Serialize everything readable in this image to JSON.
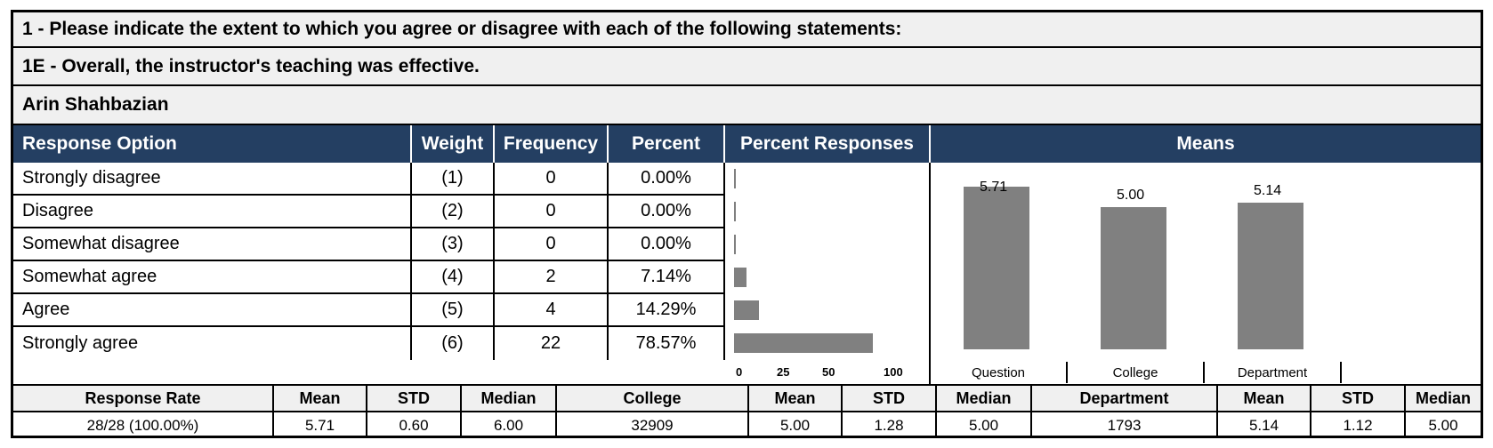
{
  "header": {
    "question_group": "1 - Please indicate the extent to which you agree or disagree with each of the following statements:",
    "question": "1E - Overall, the instructor's teaching was effective.",
    "instructor": "Arin Shahbazian"
  },
  "table": {
    "columns": {
      "option": "Response Option",
      "weight": "Weight",
      "frequency": "Frequency",
      "percent": "Percent",
      "percent_responses": "Percent Responses",
      "means": "Means"
    },
    "rows": [
      {
        "option": "Strongly disagree",
        "weight": "(1)",
        "frequency": "0",
        "percent": "0.00%",
        "value": 0
      },
      {
        "option": "Disagree",
        "weight": "(2)",
        "frequency": "0",
        "percent": "0.00%",
        "value": 0
      },
      {
        "option": "Somewhat disagree",
        "weight": "(3)",
        "frequency": "0",
        "percent": "0.00%",
        "value": 0
      },
      {
        "option": "Somewhat agree",
        "weight": "(4)",
        "frequency": "2",
        "percent": "7.14%",
        "value": 7.14
      },
      {
        "option": "Agree",
        "weight": "(5)",
        "frequency": "4",
        "percent": "14.29%",
        "value": 14.29
      },
      {
        "option": "Strongly agree",
        "weight": "(6)",
        "frequency": "22",
        "percent": "78.57%",
        "value": 78.57
      }
    ]
  },
  "chart_data": [
    {
      "type": "bar",
      "orientation": "horizontal",
      "categories": [
        "Strongly disagree",
        "Disagree",
        "Somewhat disagree",
        "Somewhat agree",
        "Agree",
        "Strongly agree"
      ],
      "values": [
        0,
        0,
        0,
        7.14,
        14.29,
        78.57
      ],
      "xlim": [
        0,
        100
      ],
      "xticks": [
        "0",
        "25",
        "50",
        "100"
      ],
      "color": "#808080"
    },
    {
      "type": "bar",
      "categories": [
        "Question",
        "College",
        "Department"
      ],
      "values": [
        5.71,
        5.0,
        5.14
      ],
      "labels": [
        "5.71",
        "5.00",
        "5.14"
      ],
      "ylim": [
        0,
        6.3
      ],
      "color": "#808080"
    }
  ],
  "stats": {
    "headers": [
      "Response Rate",
      "Mean",
      "STD",
      "Median",
      "College",
      "Mean",
      "STD",
      "Median",
      "Department",
      "Mean",
      "STD",
      "Median"
    ],
    "values": [
      "28/28 (100.00%)",
      "5.71",
      "0.60",
      "6.00",
      "32909",
      "5.00",
      "1.28",
      "5.00",
      "1793",
      "5.14",
      "1.12",
      "5.00"
    ]
  },
  "colors": {
    "header_bg": "#243f62",
    "band_bg": "#f0f0f0",
    "bar": "#808080"
  }
}
